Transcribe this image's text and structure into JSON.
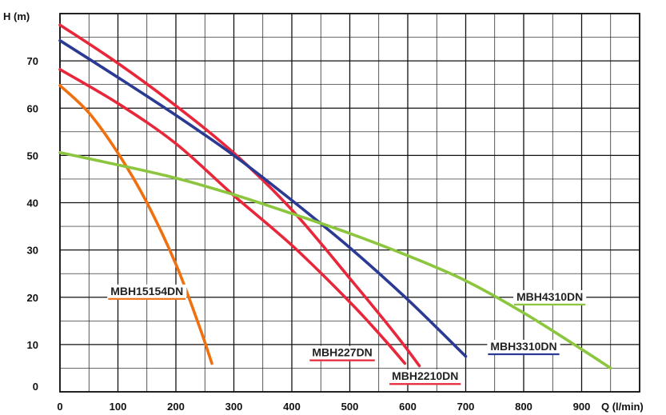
{
  "chart_data": {
    "type": "line",
    "xlabel": "Q (l/min)",
    "ylabel": "H (m)",
    "xlim": [
      0,
      1000
    ],
    "ylim": [
      0,
      80
    ],
    "x_ticks": [
      "0",
      "100",
      "200",
      "300",
      "400",
      "500",
      "600",
      "700",
      "800",
      "900"
    ],
    "y_ticks": [
      "0",
      "10",
      "20",
      "30",
      "40",
      "50",
      "60",
      "70"
    ],
    "minor_x_step": 50,
    "minor_y_step": 5,
    "grid": true,
    "series": [
      {
        "name": "MBH15154DN",
        "color": "#f07010",
        "points": [
          [
            0,
            64.8
          ],
          [
            50,
            59
          ],
          [
            100,
            50.5
          ],
          [
            150,
            40
          ],
          [
            200,
            27
          ],
          [
            240,
            14
          ],
          [
            262,
            6
          ]
        ]
      },
      {
        "name": "MBH227DN",
        "color": "#e8283a",
        "points": [
          [
            0,
            68.2
          ],
          [
            100,
            61
          ],
          [
            200,
            52.5
          ],
          [
            300,
            41.5
          ],
          [
            400,
            31
          ],
          [
            500,
            19
          ],
          [
            560,
            11
          ],
          [
            595,
            6
          ]
        ]
      },
      {
        "name": "MBH2210DN",
        "color": "#e8283a",
        "points": [
          [
            0,
            77.6
          ],
          [
            100,
            69.5
          ],
          [
            200,
            60.5
          ],
          [
            300,
            50.5
          ],
          [
            400,
            38.5
          ],
          [
            500,
            24
          ],
          [
            580,
            12
          ],
          [
            620,
            5.5
          ]
        ]
      },
      {
        "name": "MBH3310DN",
        "color": "#2b3a92",
        "points": [
          [
            0,
            74.3
          ],
          [
            100,
            66.5
          ],
          [
            200,
            58.5
          ],
          [
            300,
            50
          ],
          [
            400,
            40.5
          ],
          [
            500,
            30.5
          ],
          [
            600,
            19.5
          ],
          [
            700,
            7.5
          ]
        ]
      },
      {
        "name": "MBH4310DN",
        "color": "#8cc63f",
        "points": [
          [
            0,
            50.6
          ],
          [
            100,
            48
          ],
          [
            200,
            45.2
          ],
          [
            300,
            41.7
          ],
          [
            400,
            37.7
          ],
          [
            500,
            33.5
          ],
          [
            600,
            28.8
          ],
          [
            700,
            23.5
          ],
          [
            800,
            16.7
          ],
          [
            900,
            9
          ],
          [
            950,
            5
          ]
        ]
      }
    ],
    "labels": [
      {
        "text": "MBH15154DN",
        "series": "MBH15154DN",
        "x": 150,
        "y": 20.5
      },
      {
        "text": "MBH227DN",
        "series": "MBH227DN",
        "x": 487,
        "y": 7.5
      },
      {
        "text": "MBH2210DN",
        "series": "MBH2210DN",
        "x": 630,
        "y": 2.5
      },
      {
        "text": "MBH3310DN",
        "series": "MBH3310DN",
        "x": 800,
        "y": 8.8
      },
      {
        "text": "MBH4310DN",
        "series": "MBH4310DN",
        "x": 845,
        "y": 19.3
      }
    ]
  }
}
